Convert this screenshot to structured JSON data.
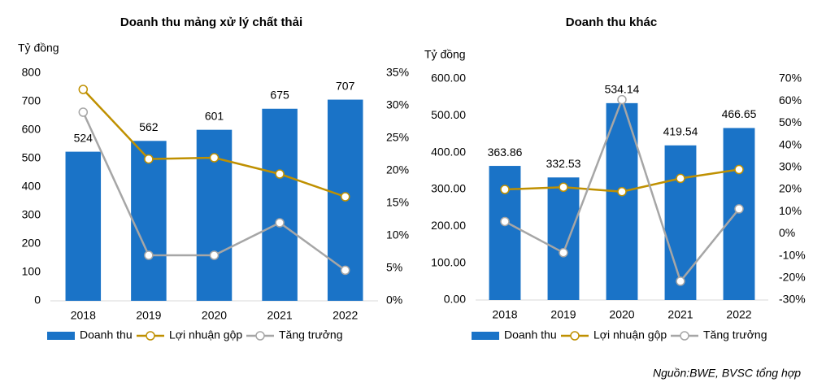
{
  "chart_data": [
    {
      "type": "combo",
      "title": "Doanh thu mảng xử lý chất thải",
      "y_label": "Tỷ đồng",
      "categories": [
        "2018",
        "2019",
        "2020",
        "2021",
        "2022"
      ],
      "ylim": [
        0,
        800
      ],
      "yticks": [
        0,
        100,
        200,
        300,
        400,
        500,
        600,
        700,
        800
      ],
      "y2lim": [
        0,
        35
      ],
      "y2ticks": [
        {
          "value": 0,
          "label": "0%"
        },
        {
          "value": 5,
          "label": "5%"
        },
        {
          "value": 10,
          "label": "10%"
        },
        {
          "value": 15,
          "label": "15%"
        },
        {
          "value": 20,
          "label": "20%"
        },
        {
          "value": 25,
          "label": "25%"
        },
        {
          "value": 30,
          "label": "30%"
        },
        {
          "value": 35,
          "label": "35%"
        }
      ],
      "series": [
        {
          "name": "Doanh thu",
          "type": "bar",
          "color": "#1a73c7",
          "values": [
            524,
            562,
            601,
            675,
            707
          ]
        },
        {
          "name": "Lợi nhuận gộp",
          "type": "line",
          "axis": "y2",
          "color": "#bf9000",
          "values": [
            32.5,
            21.8,
            22,
            19.5,
            16
          ]
        },
        {
          "name": "Tăng trưởng",
          "type": "line",
          "axis": "y2",
          "color": "#a6a6a6",
          "values": [
            29,
            7,
            7,
            12,
            4.7
          ]
        }
      ]
    },
    {
      "type": "combo",
      "title": "Doanh thu khác",
      "y_label": "Tỷ đồng",
      "categories": [
        "2018",
        "2019",
        "2020",
        "2021",
        "2022"
      ],
      "ylim": [
        0,
        600
      ],
      "yticks": [
        {
          "value": 0,
          "label": "0.00"
        },
        {
          "value": 100,
          "label": "100.00"
        },
        {
          "value": 200,
          "label": "200.00"
        },
        {
          "value": 300,
          "label": "300.00"
        },
        {
          "value": 400,
          "label": "400.00"
        },
        {
          "value": 500,
          "label": "500.00"
        },
        {
          "value": 600,
          "label": "600.00"
        }
      ],
      "y2lim": [
        -30,
        70
      ],
      "y2ticks": [
        {
          "value": -30,
          "label": "-30%"
        },
        {
          "value": -20,
          "label": "-20%"
        },
        {
          "value": -10,
          "label": "-10%"
        },
        {
          "value": 0,
          "label": "0%"
        },
        {
          "value": 10,
          "label": "10%"
        },
        {
          "value": 20,
          "label": "20%"
        },
        {
          "value": 30,
          "label": "30%"
        },
        {
          "value": 40,
          "label": "40%"
        },
        {
          "value": 50,
          "label": "50%"
        },
        {
          "value": 60,
          "label": "60%"
        },
        {
          "value": 70,
          "label": "70%"
        }
      ],
      "series": [
        {
          "name": "Doanh thu",
          "type": "bar",
          "color": "#1a73c7",
          "values": [
            363.86,
            332.53,
            534.14,
            419.54,
            466.65
          ]
        },
        {
          "name": "Lợi nhuận gộp",
          "type": "line",
          "axis": "y2",
          "color": "#bf9000",
          "values": [
            20,
            21,
            19,
            25,
            29
          ]
        },
        {
          "name": "Tăng trưởng",
          "type": "line",
          "axis": "y2",
          "color": "#a6a6a6",
          "values": [
            5.5,
            -8.6,
            60.6,
            -21.5,
            11.2
          ]
        }
      ]
    }
  ],
  "source": "Nguồn:BWE, BVSC tổng hợp"
}
